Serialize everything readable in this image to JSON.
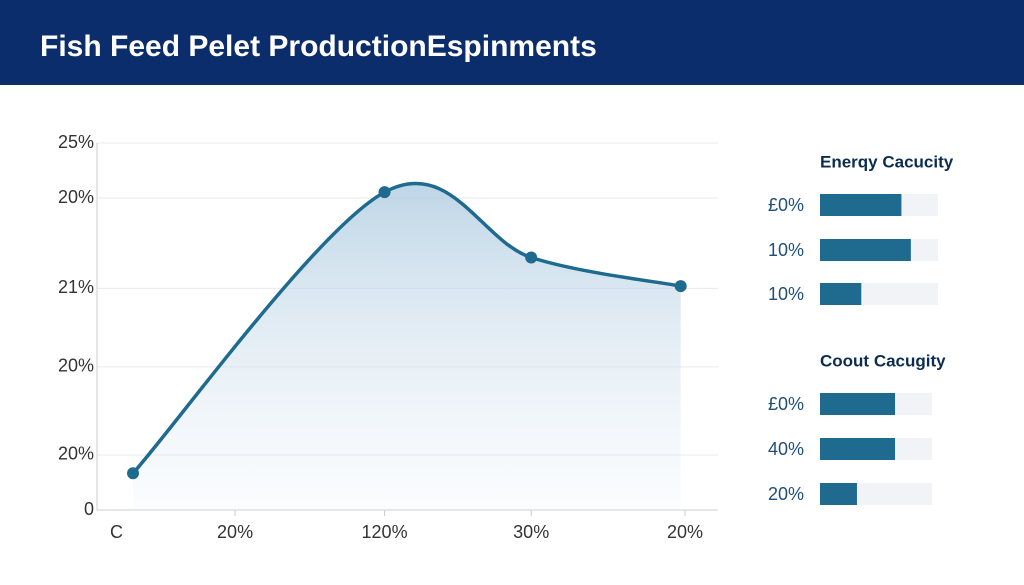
{
  "header": {
    "title": "Fish Feed Pelet ProductionEspinments"
  },
  "chart_data": [
    {
      "type": "line",
      "color": "#1f6a8f",
      "grid": true,
      "x": [
        0.16,
        1.91,
        2.93,
        3.97
      ],
      "values": [
        2.5,
        21.65,
        17.2,
        15.25
      ],
      "xlim": [
        0,
        4
      ],
      "xticks": [
        {
          "value": 0,
          "label": "C"
        },
        {
          "value": 0.87,
          "label": "20%"
        },
        {
          "value": 1.91,
          "label": "120%"
        },
        {
          "value": 2.93,
          "label": "30%"
        },
        {
          "value": 4,
          "label": "20%"
        }
      ],
      "ylim": [
        0,
        25
      ],
      "yticks": [
        {
          "value": 25,
          "label": "25%"
        },
        {
          "value": 21.25,
          "label": "20%"
        },
        {
          "value": 15.1,
          "label": "21%"
        },
        {
          "value": 9.75,
          "label": "20%"
        },
        {
          "value": 3.75,
          "label": "20%"
        },
        0
      ]
    },
    {
      "type": "bar",
      "orientation": "horizontal",
      "title": "Enerqy Cacucity",
      "color": "#1f6a8f",
      "categories": [
        "£0%",
        "10%",
        "10%"
      ],
      "values": [
        69,
        77,
        35
      ],
      "xlim": [
        0,
        100
      ]
    },
    {
      "type": "bar",
      "orientation": "horizontal",
      "title": "Coout Cacugity",
      "color": "#1f6a8f",
      "categories": [
        "£0%",
        "40%",
        "20%"
      ],
      "values": [
        67,
        67,
        33
      ],
      "xlim": [
        0,
        100
      ]
    }
  ]
}
